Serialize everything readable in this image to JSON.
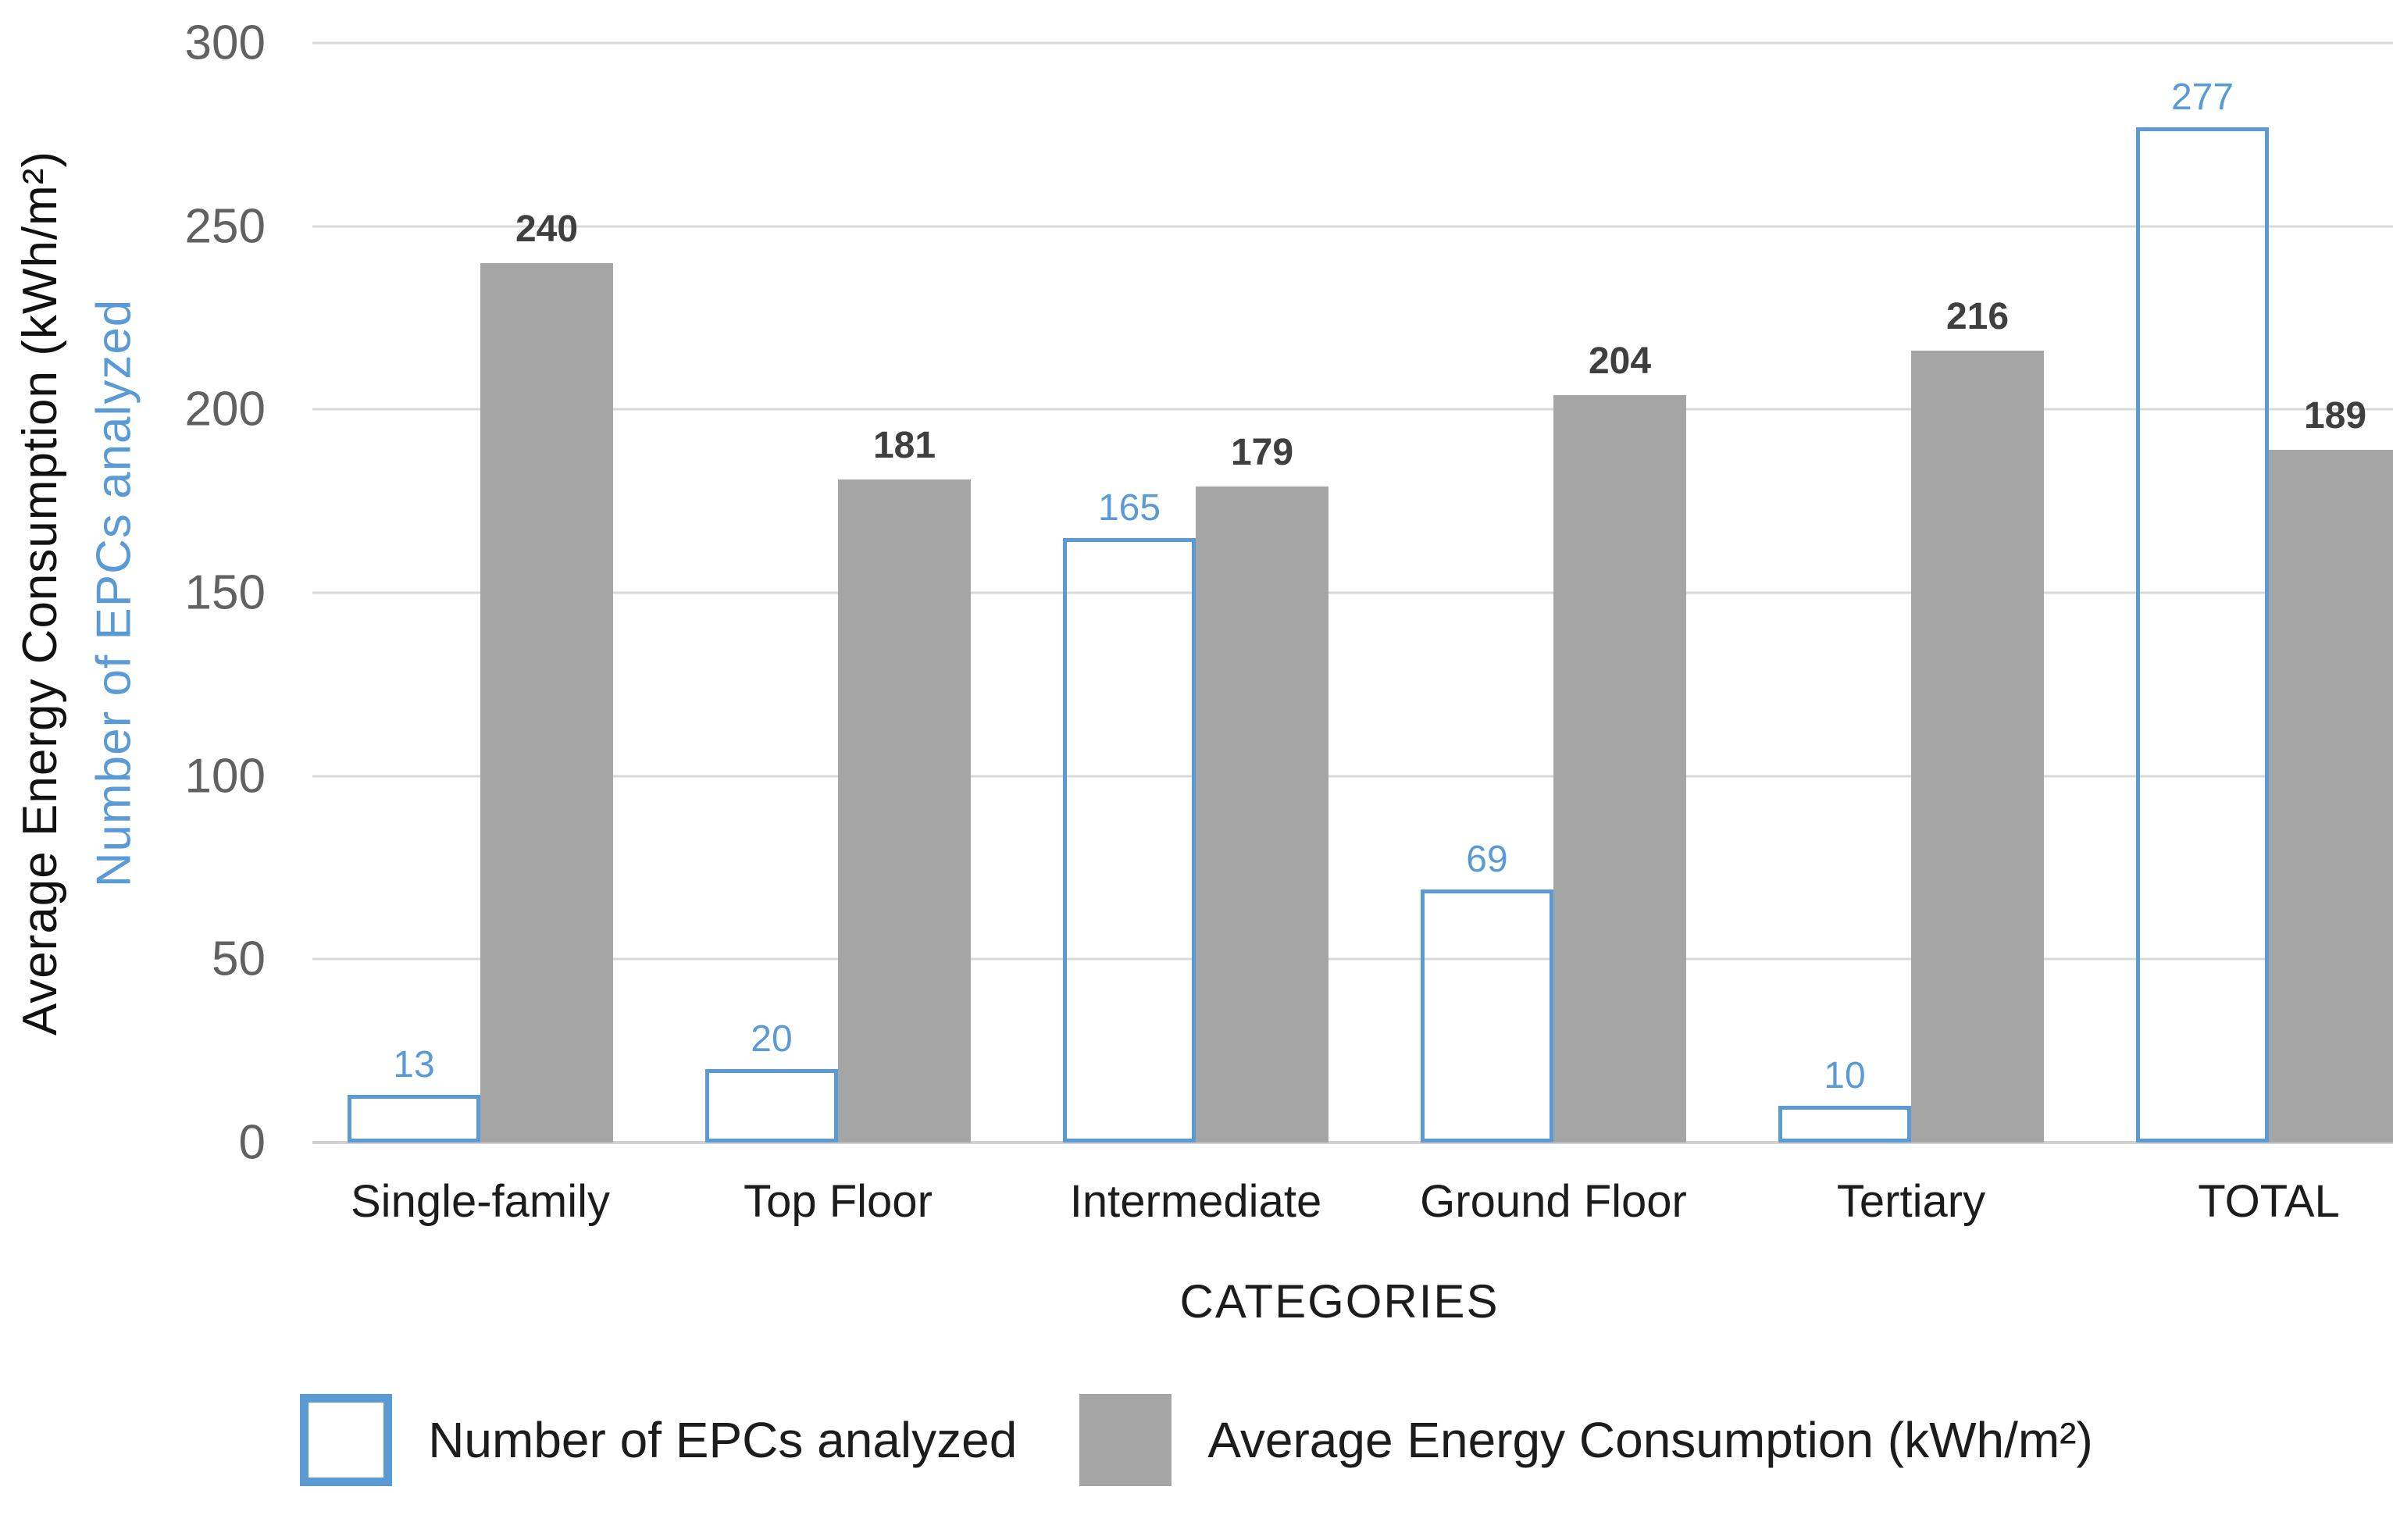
{
  "chart_data": {
    "type": "bar",
    "categories": [
      "Single-family",
      "Top Floor",
      "Intermediate",
      "Ground Floor",
      "Tertiary",
      "TOTAL"
    ],
    "series": [
      {
        "name": "Number of EPCs analyzed",
        "values": [
          13,
          20,
          165,
          69,
          10,
          277
        ],
        "style": "outline",
        "color": "#5B9BD5"
      },
      {
        "name": "Average Energy Consumption (kWh/m²)",
        "values": [
          240,
          181,
          179,
          204,
          216,
          189
        ],
        "style": "fill",
        "color": "#A5A5A5"
      }
    ],
    "xlabel": "CATEGORIES",
    "ylabels": {
      "energy": "Average Energy Consumption (kWh/m²)",
      "epcs": "Number of EPCs analyzed"
    },
    "ylim": [
      0,
      300
    ],
    "yticks": [
      0,
      50,
      100,
      150,
      200,
      250,
      300
    ],
    "grid": true,
    "legend_position": "bottom"
  },
  "colors": {
    "blue_accent": "#5B9BD5",
    "gray_bar": "#A5A5A5",
    "gridline": "#D9D9D9",
    "axis_line": "#D2D0D0",
    "tick_text": "#616161",
    "dark_text": "#1C1C1C",
    "gray_label_text": "#3F3F3F",
    "background": "#FFFFFF"
  }
}
